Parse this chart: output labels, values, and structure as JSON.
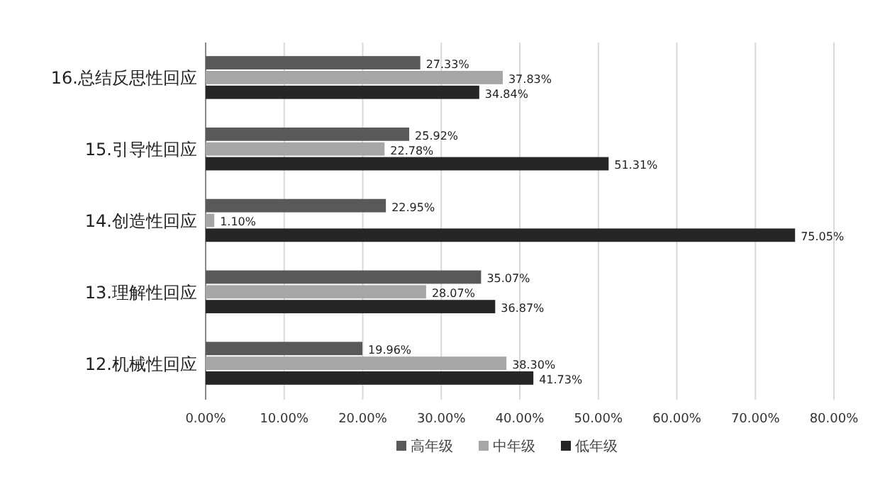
{
  "chart_data": {
    "type": "bar",
    "orientation": "horizontal",
    "categories": [
      "16.总结反思性回应",
      "15.引导性回应",
      "14.创造性回应",
      "13.理解性回应",
      "12.机械性回应"
    ],
    "series": [
      {
        "name": "高年级",
        "color": "#595959",
        "values": [
          27.33,
          25.92,
          22.95,
          35.07,
          19.96
        ],
        "value_labels": [
          "27.33%",
          "25.92%",
          "22.95%",
          "35.07%",
          "19.96%"
        ]
      },
      {
        "name": "中年级",
        "color": "#a6a6a6",
        "values": [
          37.83,
          22.78,
          1.1,
          28.07,
          38.3
        ],
        "value_labels": [
          "37.83%",
          "22.78%",
          "1.10%",
          "28.07%",
          "38.30%"
        ]
      },
      {
        "name": "低年级",
        "color": "#262626",
        "values": [
          34.84,
          51.31,
          75.05,
          36.87,
          41.73
        ],
        "value_labels": [
          "34.84%",
          "51.31%",
          "75.05%",
          "36.87%",
          "41.73%"
        ]
      }
    ],
    "xlim": [
      0,
      80
    ],
    "xticks": [
      {
        "value": 0,
        "label": "0.00%"
      },
      {
        "value": 10,
        "label": "10.00%"
      },
      {
        "value": 20,
        "label": "20.00%"
      },
      {
        "value": 30,
        "label": "30.00%"
      },
      {
        "value": 40,
        "label": "40.00%"
      },
      {
        "value": 50,
        "label": "50.00%"
      },
      {
        "value": 60,
        "label": "60.00%"
      },
      {
        "value": 70,
        "label": "70.00%"
      },
      {
        "value": 80,
        "label": "80.00%"
      }
    ],
    "grid": "x",
    "legend": "bottom"
  }
}
